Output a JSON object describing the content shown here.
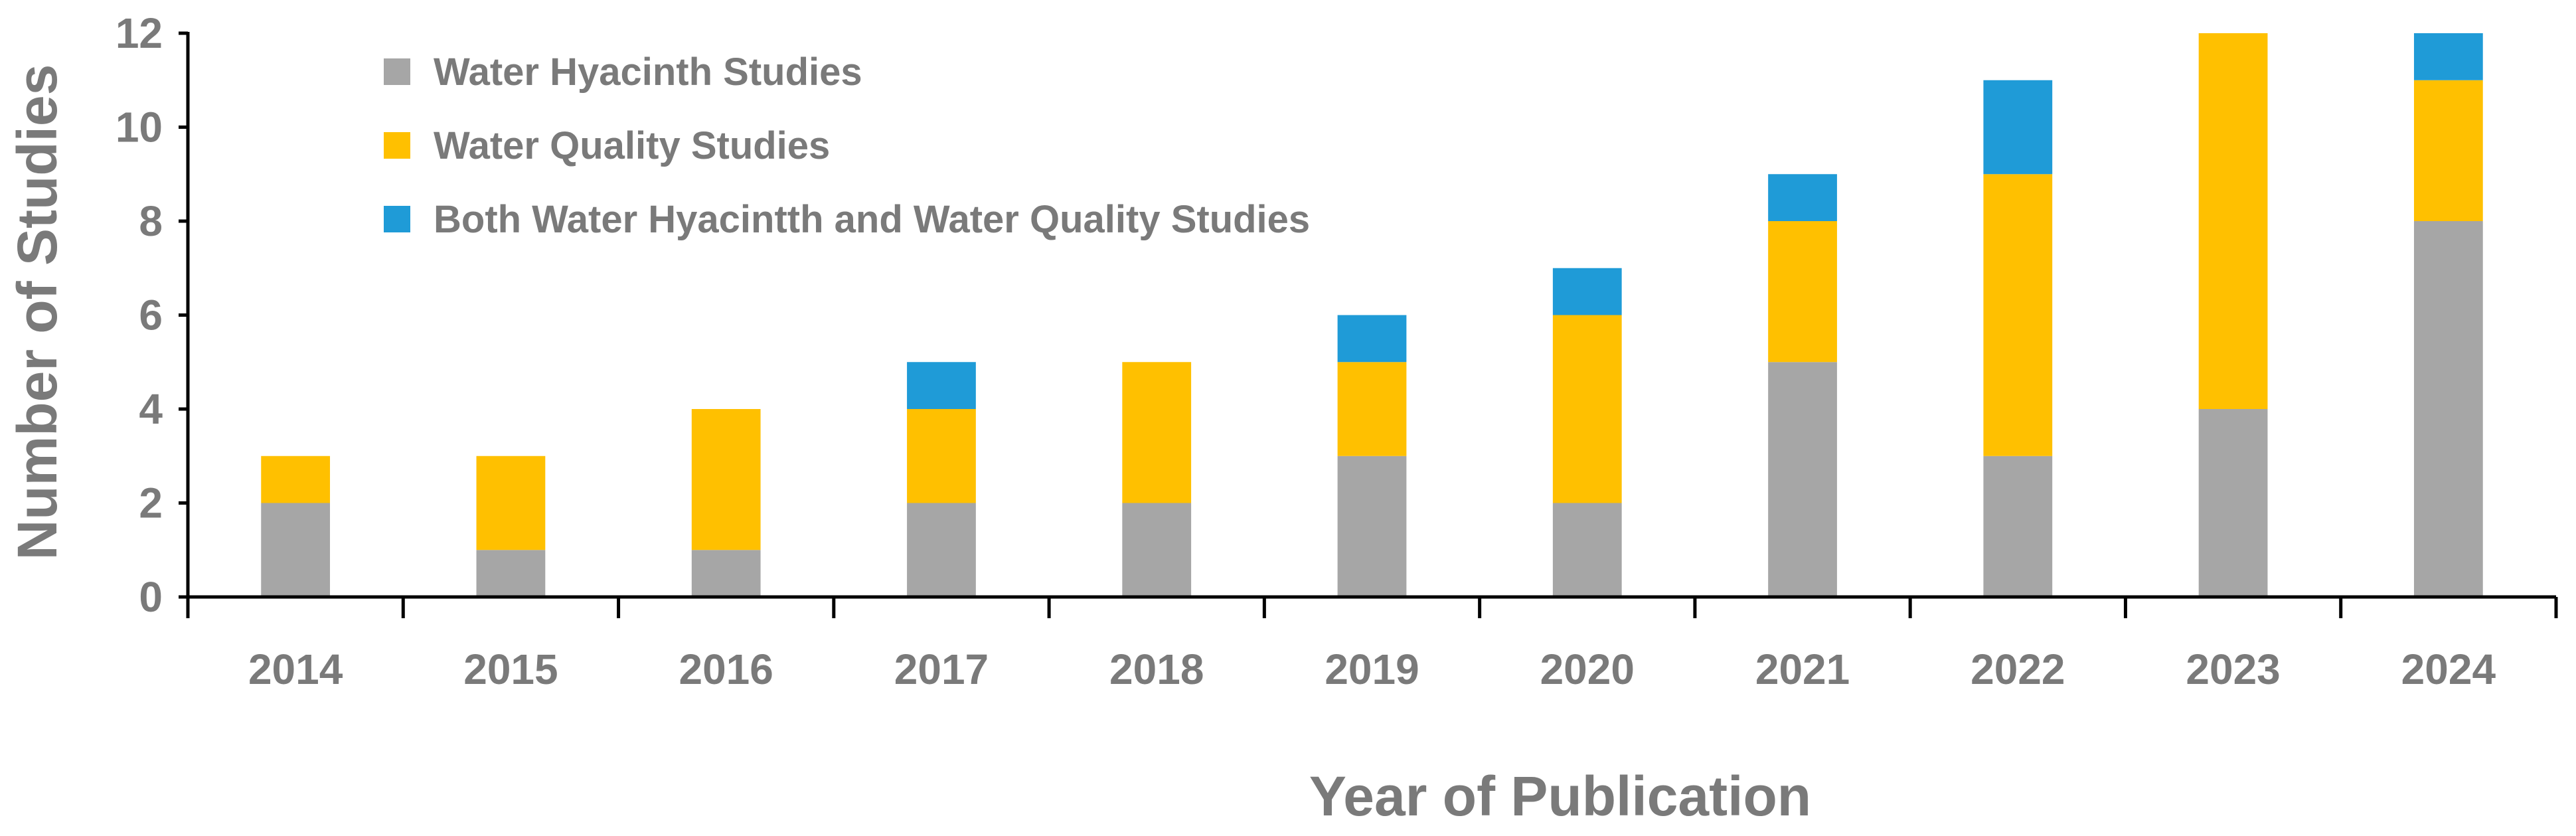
{
  "chart_data": {
    "type": "bar",
    "stacked": true,
    "title": "",
    "xlabel": "Year of Publication",
    "ylabel": "Number of Studies",
    "ylim": [
      0,
      12
    ],
    "yticks": [
      0,
      2,
      4,
      6,
      8,
      10,
      12
    ],
    "categories": [
      "2014",
      "2015",
      "2016",
      "2017",
      "2018",
      "2019",
      "2020",
      "2021",
      "2022",
      "2023",
      "2024"
    ],
    "series": [
      {
        "name": "Water Hyacinth Studies",
        "color": "#a6a6a6",
        "values": [
          2,
          1,
          1,
          2,
          2,
          3,
          2,
          5,
          3,
          4,
          8
        ]
      },
      {
        "name": "Water Quality Studies",
        "color": "#ffc000",
        "values": [
          1,
          2,
          3,
          2,
          3,
          2,
          4,
          3,
          6,
          8,
          3
        ]
      },
      {
        "name": "Both Water Hyacintth  and Water Quality Studies",
        "color": "#1f9bd7",
        "values": [
          0,
          0,
          0,
          1,
          0,
          1,
          1,
          1,
          2,
          0,
          1
        ]
      }
    ],
    "legend_position": "top-left",
    "grid": false
  }
}
